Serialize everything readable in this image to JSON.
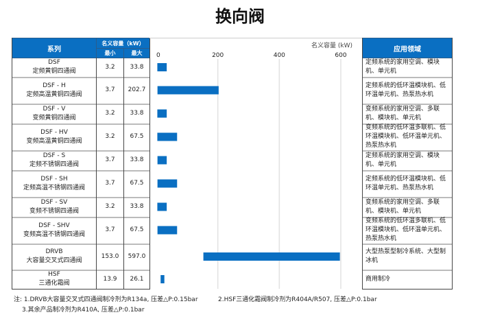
{
  "title": "换向阀",
  "table": {
    "series_header": "系列",
    "capacity_header": "名义容量（kW）",
    "min_header": "最小",
    "max_header": "最大",
    "application_header": "应用领域"
  },
  "rows": [
    {
      "code": "DSF",
      "name": "定频黄铜四通阀",
      "min": "3.2",
      "max": "33.8",
      "application": "定频系统的家用空调、模块机、单元机"
    },
    {
      "code": "DSF - H",
      "name": "定频高温黄铜四通阀",
      "min": "3.7",
      "max": "202.7",
      "application": "定频系统的低环温模块机、低环温单元机、热泵热水机"
    },
    {
      "code": "DSF - V",
      "name": "变频黄铜四通阀",
      "min": "3.2",
      "max": "33.8",
      "application": "变频系统的家用空调、多联机、模块机、单元机"
    },
    {
      "code": "DSF - HV",
      "name": "变频高温黄铜四通阀",
      "min": "3.2",
      "max": "67.5",
      "application": "变频系统的低环温多联机、低环温模块机、低环温单元机、热泵热水机"
    },
    {
      "code": "DSF - S",
      "name": "定频不锈钢四通阀",
      "min": "3.7",
      "max": "33.8",
      "application": "定频系统的家用空调、模块机、单元机"
    },
    {
      "code": "DSF - SH",
      "name": "定频高温不锈钢四通阀",
      "min": "3.7",
      "max": "67.5",
      "application": "定频系统的低环温模块机、低环温单元机、热泵热水机"
    },
    {
      "code": "DSF - SV",
      "name": "变频不锈钢四通阀",
      "min": "3.2",
      "max": "33.8",
      "application": "变频系统的家用空调、多联机、模块机、单元机"
    },
    {
      "code": "DSF - SHV",
      "name": "变频高温不锈钢四通阀",
      "min": "3.7",
      "max": "67.5",
      "application": "变频系统的低环温多联机、低环温模块机、低环温单元机、热泵热水机"
    },
    {
      "code": "DRVB",
      "name": "大容量交叉式四通阀",
      "min": "153.0",
      "max": "597.0",
      "application": "大型热泵型制冷系统、大型制冰机"
    },
    {
      "code": "HSF",
      "name": "三通化霜阀",
      "min": "13.9",
      "max": "26.1",
      "application": "商用制冷"
    }
  ],
  "chart_data": {
    "type": "bar",
    "orientation": "horizontal-range",
    "title": "名义容量 (kW)",
    "xlim": [
      0,
      600
    ],
    "xticks": [
      "0",
      "200",
      "400",
      "600"
    ],
    "categories": [
      "DSF",
      "DSF - H",
      "DSF - V",
      "DSF - HV",
      "DSF - S",
      "DSF - SH",
      "DSF - SV",
      "DSF - SHV",
      "DRVB",
      "HSF"
    ],
    "min": [
      3.2,
      3.7,
      3.2,
      3.2,
      3.7,
      3.7,
      3.2,
      3.7,
      153.0,
      13.9
    ],
    "max": [
      33.8,
      202.7,
      33.8,
      67.5,
      33.8,
      67.5,
      33.8,
      67.5,
      597.0,
      26.1
    ],
    "bar_color": "#0a6fc2"
  },
  "notes": [
    "注: 1.DRVB大容量交叉式四通阀制冷剂为R134a, 压差△P:0.15bar",
    "2.HSF三通化霜阀制冷剂为R404A/R507, 压差△P:0.1bar",
    "3.其余产品制冷剂为R410A, 压差△P:0.1bar"
  ]
}
